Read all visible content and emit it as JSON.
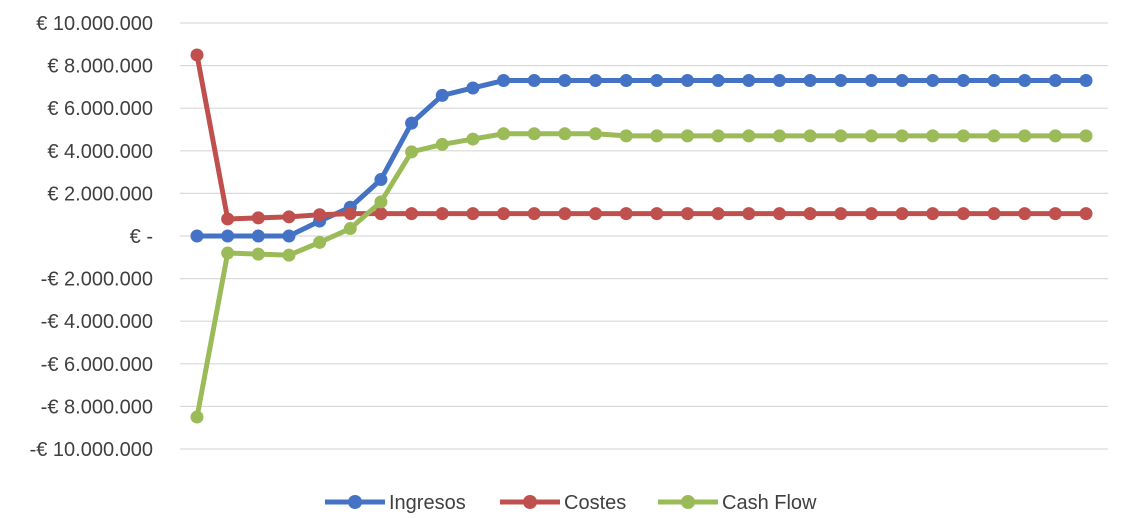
{
  "chart_data": {
    "type": "line",
    "title": "",
    "xlabel": "",
    "ylabel": "",
    "ylim": [
      -10000000,
      10000000
    ],
    "y_ticks": [
      10000000,
      8000000,
      6000000,
      4000000,
      2000000,
      0,
      -2000000,
      -4000000,
      -6000000,
      -8000000,
      -10000000
    ],
    "y_tick_labels": [
      "€ 10.000.000",
      "€ 8.000.000",
      "€ 6.000.000",
      "€ 4.000.000",
      "€ 2.000.000",
      "€ -",
      "-€ 2.000.000",
      "-€ 4.000.000",
      "-€ 6.000.000",
      "-€ 8.000.000",
      "-€ 10.000.000"
    ],
    "x": [
      1,
      2,
      3,
      4,
      5,
      6,
      7,
      8,
      9,
      10,
      11,
      12,
      13,
      14,
      15,
      16,
      17,
      18,
      19,
      20,
      21,
      22,
      23,
      24,
      25,
      26,
      27,
      28,
      29,
      30
    ],
    "grid": true,
    "legend_position": "bottom",
    "series": [
      {
        "name": "Ingresos",
        "color": "#4472C4",
        "values": [
          0,
          0,
          0,
          0,
          700000,
          1350000,
          2650000,
          5300000,
          6600000,
          6950000,
          7300000,
          7300000,
          7300000,
          7300000,
          7300000,
          7300000,
          7300000,
          7300000,
          7300000,
          7300000,
          7300000,
          7300000,
          7300000,
          7300000,
          7300000,
          7300000,
          7300000,
          7300000,
          7300000,
          7300000
        ]
      },
      {
        "name": "Costes",
        "color": "#C0504D",
        "values": [
          8500000,
          800000,
          850000,
          900000,
          1000000,
          1050000,
          1050000,
          1050000,
          1050000,
          1050000,
          1050000,
          1050000,
          1050000,
          1050000,
          1050000,
          1050000,
          1050000,
          1050000,
          1050000,
          1050000,
          1050000,
          1050000,
          1050000,
          1050000,
          1050000,
          1050000,
          1050000,
          1050000,
          1050000,
          1050000
        ]
      },
      {
        "name": "Cash Flow",
        "color": "#9BBB59",
        "values": [
          -8500000,
          -800000,
          -850000,
          -900000,
          -300000,
          350000,
          1600000,
          3950000,
          4300000,
          4550000,
          4800000,
          4800000,
          4800000,
          4800000,
          4700000,
          4700000,
          4700000,
          4700000,
          4700000,
          4700000,
          4700000,
          4700000,
          4700000,
          4700000,
          4700000,
          4700000,
          4700000,
          4700000,
          4700000,
          4700000
        ]
      }
    ]
  }
}
